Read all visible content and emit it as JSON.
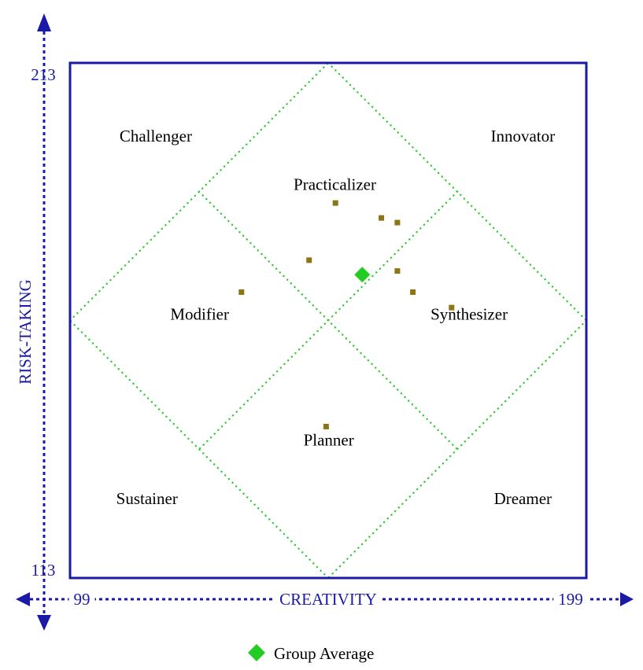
{
  "chart_data": {
    "type": "scatter",
    "xlabel": "CREATIVITY",
    "ylabel": "RISK-TAKING",
    "xlim": [
      99,
      199
    ],
    "ylim": [
      113,
      213
    ],
    "x_ticks": [
      "99",
      "199"
    ],
    "y_ticks": [
      "113",
      "213"
    ],
    "grid": false,
    "legend_position": "bottom-center",
    "quadrant_labels": [
      {
        "text": "Challenger",
        "x": 115.6,
        "y": 198.8
      },
      {
        "text": "Innovator",
        "x": 186.7,
        "y": 198.8
      },
      {
        "text": "Practicalizer",
        "x": 150.3,
        "y": 189.4
      },
      {
        "text": "Modifier",
        "x": 124.1,
        "y": 164.2
      },
      {
        "text": "Synthesizer",
        "x": 176.3,
        "y": 164.2
      },
      {
        "text": "Planner",
        "x": 149.1,
        "y": 139.8
      },
      {
        "text": "Sustainer",
        "x": 113.9,
        "y": 128.4
      },
      {
        "text": "Dreamer",
        "x": 186.7,
        "y": 128.4
      }
    ],
    "series": [
      {
        "points": [
          {
            "x": 150.4,
            "y": 185.8
          },
          {
            "x": 159.3,
            "y": 182.9
          },
          {
            "x": 162.4,
            "y": 182.0
          },
          {
            "x": 145.3,
            "y": 174.7
          },
          {
            "x": 162.4,
            "y": 172.6
          },
          {
            "x": 132.2,
            "y": 168.5
          },
          {
            "x": 165.4,
            "y": 168.5
          },
          {
            "x": 172.9,
            "y": 165.5
          },
          {
            "x": 148.6,
            "y": 142.4
          }
        ],
        "color": "#8b7514"
      },
      {
        "name": "Group Average",
        "points": [
          {
            "x": 155.6,
            "y": 171.9
          }
        ],
        "color": "#22cc22"
      }
    ],
    "colors": {
      "axis": "#1a1aa6",
      "frame": "#1a1aa6",
      "diamonds": "#33cc33",
      "text": "#000000"
    }
  }
}
